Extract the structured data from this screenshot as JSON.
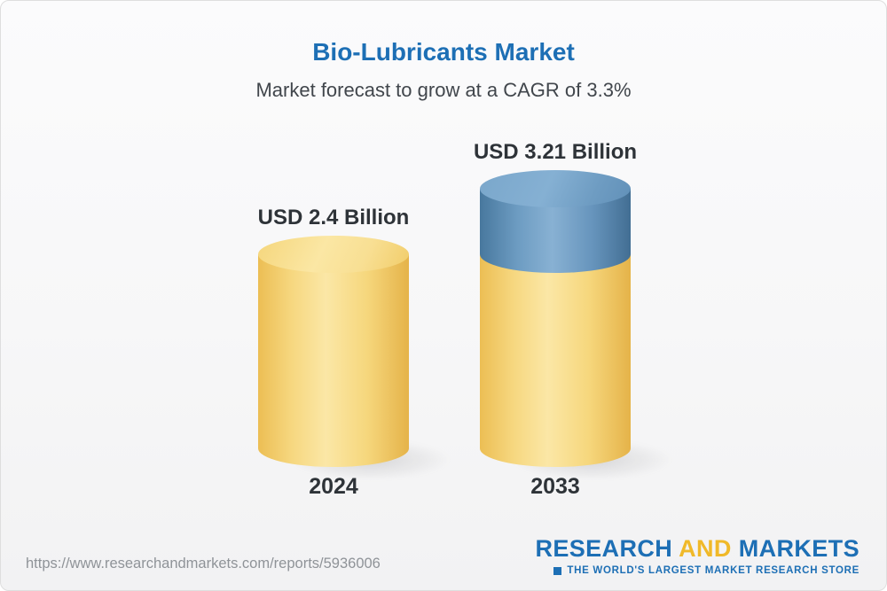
{
  "chart_data": {
    "type": "bar",
    "variant": "3d-cylinder",
    "title": "Bio-Lubricants Market",
    "subtitle": "Market forecast to grow at a CAGR of 3.3%",
    "unit": "USD Billion",
    "cagr_percent": 3.3,
    "categories": [
      "2024",
      "2033"
    ],
    "values": [
      2.4,
      3.21
    ],
    "value_labels": [
      "USD 2.4 Billion",
      "USD 3.21 Billion"
    ],
    "ylim": [
      0,
      3.21
    ],
    "legend": "none",
    "grid": false,
    "growth_segment": {
      "bar_index": 1,
      "base_value": 2.4
    },
    "colors": {
      "base_bar": "#f6d77f",
      "growth_bar": "#6d9cc2",
      "title_text": "#1d6fb5",
      "label_text": "#2e3338"
    }
  },
  "footer": {
    "url": "https://www.researchandmarkets.com/reports/5936006",
    "logo": {
      "part1": "RESEARCH",
      "and": "AND",
      "part2": "MARKETS",
      "tagline": "THE WORLD'S LARGEST MARKET RESEARCH STORE"
    }
  }
}
